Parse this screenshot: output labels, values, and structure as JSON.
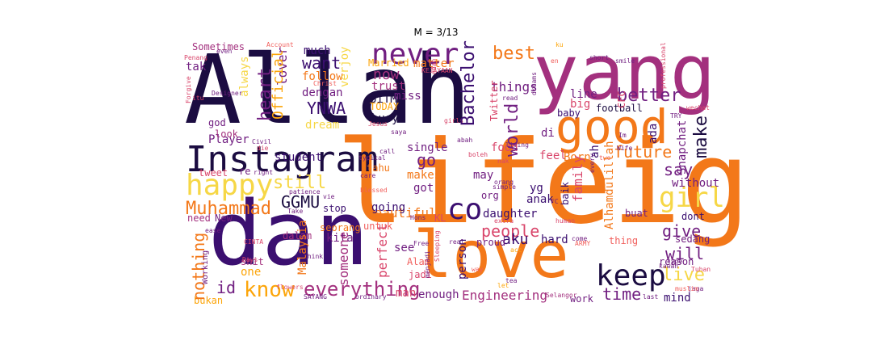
{
  "figure": {
    "title": "M = 3/13"
  },
  "palette": {
    "c0": "#1b0c41",
    "c1": "#3b0f70",
    "c2": "#711f81",
    "c3": "#a3307e",
    "c4": "#d9466b",
    "c5": "#f1605d",
    "c6": "#f37819",
    "c7": "#fca50a",
    "c8": "#f6d746",
    "c9": "#fcffa4"
  },
  "words": [
    {
      "text": "Allah",
      "color": "c0",
      "vertical": false
    },
    {
      "text": "yang",
      "color": "c3",
      "vertical": false
    },
    {
      "text": "lifeig",
      "color": "c6",
      "vertical": false
    },
    {
      "text": "good",
      "color": "c6",
      "vertical": false
    },
    {
      "text": "Instagram",
      "color": "c0",
      "vertical": false
    },
    {
      "text": "dan",
      "color": "c1",
      "vertical": false
    },
    {
      "text": "love",
      "color": "c6",
      "vertical": false
    },
    {
      "text": "never",
      "color": "c2",
      "vertical": false
    },
    {
      "text": "keep",
      "color": "c0",
      "vertical": false
    },
    {
      "text": "happy",
      "color": "c8",
      "vertical": false
    },
    {
      "text": "co",
      "color": "c1",
      "vertical": false
    },
    {
      "text": "know",
      "color": "c7",
      "vertical": false
    },
    {
      "text": "everything",
      "color": "c3",
      "vertical": false
    },
    {
      "text": "girl",
      "color": "c8",
      "vertical": false
    },
    {
      "text": "future",
      "color": "c6",
      "vertical": false
    },
    {
      "text": "better",
      "color": "c2",
      "vertical": false
    },
    {
      "text": "Muhammad",
      "color": "c6",
      "vertical": false
    },
    {
      "text": "GGMU",
      "color": "c0",
      "vertical": false
    },
    {
      "text": "YNWA",
      "color": "c1",
      "vertical": false
    },
    {
      "text": "want",
      "color": "c1",
      "vertical": false
    },
    {
      "text": "best",
      "color": "c6",
      "vertical": false
    },
    {
      "text": "people",
      "color": "c4",
      "vertical": false
    },
    {
      "text": "still",
      "color": "c8",
      "vertical": false
    },
    {
      "text": "time",
      "color": "c2",
      "vertical": false
    },
    {
      "text": "live",
      "color": "c8",
      "vertical": false
    },
    {
      "text": "will",
      "color": "c2",
      "vertical": false
    },
    {
      "text": "give",
      "color": "c2",
      "vertical": false
    },
    {
      "text": "say",
      "color": "c2",
      "vertical": false
    },
    {
      "text": "id",
      "color": "c2",
      "vertical": false
    },
    {
      "text": "go",
      "color": "c2",
      "vertical": false
    },
    {
      "text": "aku",
      "color": "c1",
      "vertical": false
    },
    {
      "text": "now",
      "color": "c3",
      "vertical": false
    },
    {
      "text": "much",
      "color": "c1",
      "vertical": false
    },
    {
      "text": "follow",
      "color": "c6",
      "vertical": false
    },
    {
      "text": "dengan",
      "color": "c2",
      "vertical": false
    },
    {
      "text": "dream",
      "color": "c8",
      "vertical": false
    },
    {
      "text": "UiTM",
      "color": "c0",
      "vertical": false
    },
    {
      "text": "TODAY",
      "color": "c7",
      "vertical": false
    },
    {
      "text": "things",
      "color": "c2",
      "vertical": false
    },
    {
      "text": "matter",
      "color": "c6",
      "vertical": false
    },
    {
      "text": "Married",
      "color": "c7",
      "vertical": false
    },
    {
      "text": "beautiful",
      "color": "c6",
      "vertical": false
    },
    {
      "text": "daughter",
      "color": "c1",
      "vertical": false
    },
    {
      "text": "Engineering",
      "color": "c3",
      "vertical": false
    },
    {
      "text": "enough",
      "color": "c2",
      "vertical": false
    },
    {
      "text": "man",
      "color": "c4",
      "vertical": false
    },
    {
      "text": "mind",
      "color": "c1",
      "vertical": false
    },
    {
      "text": "work",
      "color": "c2",
      "vertical": false
    },
    {
      "text": "reason",
      "color": "c2",
      "vertical": false
    },
    {
      "text": "without",
      "color": "c2",
      "vertical": false
    },
    {
      "text": "hard",
      "color": "c1",
      "vertical": false
    },
    {
      "text": "football",
      "color": "c0",
      "vertical": false
    },
    {
      "text": "student",
      "color": "c1",
      "vertical": false
    },
    {
      "text": "Player",
      "color": "c2",
      "vertical": false
    },
    {
      "text": "tweet",
      "color": "c4",
      "vertical": false
    },
    {
      "text": "Sometimes",
      "color": "c3",
      "vertical": false
    },
    {
      "text": "tak",
      "color": "c2",
      "vertical": false
    },
    {
      "text": "god",
      "color": "c2",
      "vertical": false
    },
    {
      "text": "look",
      "color": "c3",
      "vertical": false
    },
    {
      "text": "need",
      "color": "c3",
      "vertical": false
    },
    {
      "text": "New",
      "color": "c2",
      "vertical": false
    },
    {
      "text": "busy",
      "color": "c0",
      "vertical": false
    },
    {
      "text": "miss",
      "color": "c2",
      "vertical": false
    },
    {
      "text": "trust",
      "color": "c3",
      "vertical": false
    },
    {
      "text": "going",
      "color": "c1",
      "vertical": false
    },
    {
      "text": "stop",
      "color": "c1",
      "vertical": false
    },
    {
      "text": "kita",
      "color": "c2",
      "vertical": false
    },
    {
      "text": "dalam",
      "color": "c3",
      "vertical": false
    },
    {
      "text": "makes",
      "color": "c6",
      "vertical": false
    },
    {
      "text": "got",
      "color": "c2",
      "vertical": false
    },
    {
      "text": "see",
      "color": "c2",
      "vertical": false
    },
    {
      "text": "single",
      "color": "c2",
      "vertical": false
    },
    {
      "text": "tahu",
      "color": "c6",
      "vertical": false
    },
    {
      "text": "feel",
      "color": "c4",
      "vertical": false
    },
    {
      "text": "Born",
      "color": "c6",
      "vertical": false
    },
    {
      "text": "food",
      "color": "c4",
      "vertical": false
    },
    {
      "text": "may",
      "color": "c2",
      "vertical": false
    },
    {
      "text": "org",
      "color": "c2",
      "vertical": false
    },
    {
      "text": "yg",
      "color": "c1",
      "vertical": false
    },
    {
      "text": "di",
      "color": "c2",
      "vertical": false
    },
    {
      "text": "baby",
      "color": "c1",
      "vertical": false
    },
    {
      "text": "big",
      "color": "c4",
      "vertical": false
    },
    {
      "text": "line",
      "color": "c2",
      "vertical": false
    },
    {
      "text": "anak",
      "color": "c1",
      "vertical": false
    },
    {
      "text": "dont",
      "color": "c1",
      "vertical": false
    },
    {
      "text": "thing",
      "color": "c5",
      "vertical": false
    },
    {
      "text": "sedang",
      "color": "c2",
      "vertical": false
    },
    {
      "text": "buat",
      "color": "c2",
      "vertical": false
    },
    {
      "text": "one",
      "color": "c7",
      "vertical": false
    },
    {
      "text": "shit",
      "color": "c3",
      "vertical": false
    },
    {
      "text": "bukan",
      "color": "c7",
      "vertical": false
    },
    {
      "text": "KL",
      "color": "c4",
      "vertical": false
    },
    {
      "text": "Alam",
      "color": "c5",
      "vertical": false
    },
    {
      "text": "jadi",
      "color": "c4",
      "vertical": false
    },
    {
      "text": "untuk",
      "color": "c5",
      "vertical": false
    },
    {
      "text": "seorang",
      "color": "c6",
      "vertical": false
    },
    {
      "text": "proud",
      "color": "c2",
      "vertical": false
    },
    {
      "text": "re",
      "color": "c2",
      "vertical": false
    },
    {
      "text": "Days",
      "color": "c4",
      "vertical": false
    },
    {
      "text": "think",
      "color": "c2",
      "vertical": false
    },
    {
      "text": "CINTA",
      "color": "c4",
      "vertical": false
    },
    {
      "text": "Free",
      "color": "c2",
      "vertical": false
    },
    {
      "text": "real",
      "color": "c2",
      "vertical": false
    },
    {
      "text": "come",
      "color": "c2",
      "vertical": false
    },
    {
      "text": "ARMY",
      "color": "c5",
      "vertical": false
    },
    {
      "text": "Selangor",
      "color": "c3",
      "vertical": false
    },
    {
      "text": "way",
      "color": "c5",
      "vertical": false
    },
    {
      "text": "tea",
      "color": "c2",
      "vertical": false
    },
    {
      "text": "Tuhan",
      "color": "c4",
      "vertical": false
    },
    {
      "text": "jaga",
      "color": "c2",
      "vertical": false
    },
    {
      "text": "last",
      "color": "c2",
      "vertical": false
    },
    {
      "text": "muslim",
      "color": "c5",
      "vertical": false
    },
    {
      "text": "type",
      "color": "c2",
      "vertical": false
    },
    {
      "text": "kawan",
      "color": "c2",
      "vertical": false
    },
    {
      "text": "ordinary",
      "color": "c2",
      "vertical": false
    },
    {
      "text": "SAYANG",
      "color": "c2",
      "vertical": false
    },
    {
      "text": "flowers",
      "color": "c4",
      "vertical": false
    },
    {
      "text": "Hons",
      "color": "c2",
      "vertical": false
    },
    {
      "text": "blessed",
      "color": "c5",
      "vertical": false
    },
    {
      "text": "patience",
      "color": "c2",
      "vertical": false
    },
    {
      "text": "vie",
      "color": "c2",
      "vertical": false
    },
    {
      "text": "Take",
      "color": "c2",
      "vertical": false
    },
    {
      "text": "right",
      "color": "c2",
      "vertical": false
    },
    {
      "text": "call",
      "color": "c2",
      "vertical": false
    },
    {
      "text": "typical",
      "color": "c2",
      "vertical": false
    },
    {
      "text": "care",
      "color": "c2",
      "vertical": false
    },
    {
      "text": "girls",
      "color": "c4",
      "vertical": false
    },
    {
      "text": "saya",
      "color": "c2",
      "vertical": false
    },
    {
      "text": "abah",
      "color": "c2",
      "vertical": false
    },
    {
      "text": "living",
      "color": "c2",
      "vertical": false
    },
    {
      "text": "Jesus",
      "color": "c4",
      "vertical": false
    },
    {
      "text": "die",
      "color": "c4",
      "vertical": false
    },
    {
      "text": "Civil",
      "color": "c2",
      "vertical": false
    },
    {
      "text": "itu",
      "color": "c4",
      "vertical": false
    },
    {
      "text": "Penang",
      "color": "c4",
      "vertical": false
    },
    {
      "text": "Account",
      "color": "c5",
      "vertical": false
    },
    {
      "text": "Designer",
      "color": "c2",
      "vertical": false
    },
    {
      "text": "even",
      "color": "c2",
      "vertical": false
    },
    {
      "text": "KEJAYAAN",
      "color": "c4",
      "vertical": false
    },
    {
      "text": "Christ",
      "color": "c5",
      "vertical": false
    },
    {
      "text": "en",
      "color": "c5",
      "vertical": false
    },
    {
      "text": "ku",
      "color": "c7",
      "vertical": false
    },
    {
      "text": "wechat",
      "color": "c4",
      "vertical": false
    },
    {
      "text": "TRY",
      "color": "c2",
      "vertical": false
    },
    {
      "text": "Im",
      "color": "c2",
      "vertical": false
    },
    {
      "text": "Wife",
      "color": "c2",
      "vertical": false
    },
    {
      "text": "smile",
      "color": "c2",
      "vertical": false
    },
    {
      "text": "short",
      "color": "c2",
      "vertical": false
    },
    {
      "text": "simple",
      "color": "c2",
      "vertical": false
    },
    {
      "text": "read",
      "color": "c2",
      "vertical": false
    },
    {
      "text": "extra",
      "color": "c4",
      "vertical": false
    },
    {
      "text": "nak",
      "color": "c4",
      "vertical": false
    },
    {
      "text": "FC",
      "color": "c2",
      "vertical": false
    },
    {
      "text": "two",
      "color": "c5",
      "vertical": false
    },
    {
      "text": "human",
      "color": "c4",
      "vertical": false
    },
    {
      "text": "acc",
      "color": "c7",
      "vertical": false
    },
    {
      "text": "let",
      "color": "c7",
      "vertical": false
    },
    {
      "text": "ease",
      "color": "c2",
      "vertical": false
    },
    {
      "text": "orang",
      "color": "c2",
      "vertical": false
    },
    {
      "text": "boleh",
      "color": "c4",
      "vertical": false
    },
    {
      "text": "heart",
      "color": "c2",
      "vertical": false,
      "vert": true
    },
    {
      "text": "lover",
      "color": "c2",
      "vertical": true
    },
    {
      "text": "Official",
      "color": "c7",
      "vertical": true
    },
    {
      "text": "always",
      "color": "c8",
      "vertical": true
    },
    {
      "text": "Bachelor",
      "color": "c1",
      "vertical": true
    },
    {
      "text": "world",
      "color": "c2",
      "vertical": true
    },
    {
      "text": "make",
      "color": "c0",
      "vertical": true
    },
    {
      "text": "Snapchat",
      "color": "c2",
      "vertical": true
    },
    {
      "text": "ada",
      "color": "c1",
      "vertical": true
    },
    {
      "text": "family",
      "color": "c4",
      "vertical": true
    },
    {
      "text": "Alhamdulillah",
      "color": "c6",
      "vertical": true
    },
    {
      "text": "nothing",
      "color": "c6",
      "vertical": true
    },
    {
      "text": "Malaysia",
      "color": "c6",
      "vertical": true
    },
    {
      "text": "someone",
      "color": "c3",
      "vertical": true
    },
    {
      "text": "perfect",
      "color": "c4",
      "vertical": true
    },
    {
      "text": "person",
      "color": "c1",
      "vertical": true
    },
    {
      "text": "Twitter",
      "color": "c4",
      "vertical": true
    },
    {
      "text": "CFC",
      "color": "c4",
      "vertical": true
    },
    {
      "text": "professional",
      "color": "c4",
      "vertical": true
    },
    {
      "text": "Working",
      "color": "c2",
      "vertical": true
    },
    {
      "text": "menjadi",
      "color": "c2",
      "vertical": true
    },
    {
      "text": "baik",
      "color": "c1",
      "vertical": true
    },
    {
      "text": "dreams",
      "color": "c2",
      "vertical": true
    },
    {
      "text": "Forgive",
      "color": "c4",
      "vertical": true
    },
    {
      "text": "every",
      "color": "c2",
      "vertical": true
    },
    {
      "text": "Sleeping",
      "color": "c4",
      "vertical": true
    },
    {
      "text": "verjoy",
      "color": "c8",
      "vertical": true
    },
    {
      "text": "ah",
      "color": "c1",
      "vertical": true
    },
    {
      "text": "ndah",
      "color": "c4",
      "vertical": true
    }
  ]
}
